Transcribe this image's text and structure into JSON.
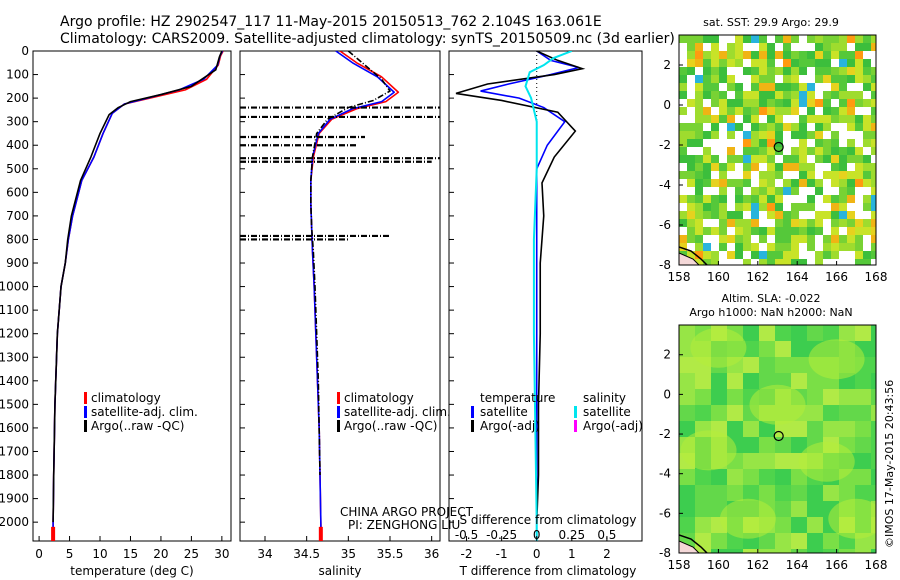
{
  "header": {
    "title_line1": "Argo profile: HZ 2902547_117 11-May-2015 20150513_762 2.104S 163.061E",
    "title_line2": "Climatology: CARS2009. Satellite-adjusted climatology: synTS_20150509.nc (3d earlier)"
  },
  "project": {
    "line1": "CHINA ARGO PROJECT",
    "line2": "PI: ZENGHONG LIU"
  },
  "footer": {
    "vertical_stamp": "©IMOS 17-May-2015 20:43:56"
  },
  "colors": {
    "climatology": "#ff0000",
    "satellite": "#0000ff",
    "argo": "#000000",
    "salinity_satellite": "#00e5ee",
    "salinity_argo": "#ff00ff"
  },
  "chart_data": [
    {
      "id": "temperature",
      "type": "line",
      "xlabel": "temperature (deg C)",
      "xlim": [
        -1,
        31.5
      ],
      "xticks": [
        "0",
        "5",
        "10",
        "15",
        "20",
        "25",
        "30"
      ],
      "xtick_values": [
        0,
        5,
        10,
        15,
        20,
        25,
        30
      ],
      "ylim": [
        2080,
        0
      ],
      "yticks": [
        "0",
        "100",
        "200",
        "300",
        "400",
        "500",
        "600",
        "700",
        "800",
        "900",
        "1000",
        "1100",
        "1200",
        "1300",
        "1400",
        "1500",
        "1600",
        "1700",
        "1800",
        "1900",
        "2000"
      ],
      "ytick_values": [
        0,
        100,
        200,
        300,
        400,
        500,
        600,
        700,
        800,
        900,
        1000,
        1100,
        1200,
        1300,
        1400,
        1500,
        1600,
        1700,
        1800,
        1900,
        2000
      ],
      "legend": [
        "climatology",
        "satellite-adj. clim.",
        "Argo(..raw -QC)"
      ],
      "series": [
        {
          "name": "climatology",
          "color": "#ff0000",
          "x": [
            30.2,
            29.8,
            29.4,
            27.5,
            24,
            19,
            14,
            12,
            10.5,
            9,
            7,
            6,
            5.5,
            4.8,
            4.3,
            3.6,
            3,
            2.6,
            2.4,
            2.3,
            2.3
          ],
          "y": [
            0,
            20,
            60,
            120,
            165,
            195,
            225,
            265,
            350,
            450,
            550,
            650,
            700,
            800,
            900,
            1000,
            1200,
            1500,
            1800,
            2000,
            2080
          ]
        },
        {
          "name": "satellite-adj. clim.",
          "color": "#0000ff",
          "x": [
            30.1,
            29.7,
            29.3,
            27,
            23,
            18.5,
            14,
            12,
            10.5,
            9,
            7,
            6,
            5.5,
            4.8,
            4.3,
            3.6,
            3,
            2.6,
            2.4,
            2.3,
            2.3
          ],
          "y": [
            0,
            20,
            60,
            120,
            165,
            195,
            225,
            265,
            350,
            450,
            550,
            650,
            700,
            800,
            900,
            1000,
            1200,
            1500,
            1800,
            2000,
            2080
          ]
        },
        {
          "name": "Argo(..raw -QC)",
          "color": "#000000",
          "x": [
            30,
            29.6,
            29,
            25,
            20,
            15,
            13,
            11.5,
            10,
            8.5,
            6.8,
            5.8,
            5.3,
            4.7,
            4.3,
            3.6,
            3,
            2.6,
            2.4,
            2.3
          ],
          "y": [
            0,
            25,
            80,
            150,
            185,
            215,
            240,
            270,
            350,
            450,
            550,
            650,
            700,
            800,
            900,
            1000,
            1200,
            1500,
            1800,
            2000
          ]
        }
      ]
    },
    {
      "id": "salinity",
      "type": "line",
      "xlabel": "salinity",
      "xlim": [
        33.7,
        36.1
      ],
      "xticks": [
        "34",
        "34.5",
        "35",
        "35.5",
        "36"
      ],
      "xtick_values": [
        34,
        34.5,
        35,
        35.5,
        36
      ],
      "ylim": [
        2080,
        0
      ],
      "legend": [
        "climatology",
        "satellite-adj. clim.",
        "Argo(..raw -QC)"
      ],
      "series": [
        {
          "name": "climatology",
          "color": "#ff0000",
          "x": [
            34.9,
            35.1,
            35.4,
            35.6,
            35.45,
            35.1,
            34.8,
            34.65,
            34.58,
            34.55,
            34.55,
            34.56,
            34.57,
            34.59,
            34.61,
            34.63,
            34.65,
            34.66,
            34.67,
            34.68
          ],
          "y": [
            0,
            50,
            110,
            175,
            215,
            245,
            290,
            350,
            450,
            550,
            650,
            750,
            850,
            1000,
            1200,
            1400,
            1600,
            1800,
            2000,
            2080
          ]
        },
        {
          "name": "satellite-adj. clim.",
          "color": "#0000ff",
          "x": [
            34.85,
            35.05,
            35.35,
            35.55,
            35.4,
            35.05,
            34.78,
            34.64,
            34.57,
            34.55,
            34.55,
            34.56,
            34.57,
            34.59,
            34.61,
            34.63,
            34.65,
            34.66,
            34.67,
            34.67
          ],
          "y": [
            0,
            50,
            110,
            175,
            215,
            245,
            290,
            350,
            450,
            550,
            650,
            750,
            850,
            1000,
            1200,
            1400,
            1600,
            1800,
            2000,
            2080
          ]
        },
        {
          "name": "Argo(..raw -QC)",
          "color": "#000000",
          "style": "dashdot",
          "x": [
            35.0,
            35.2,
            35.4,
            35.5,
            35.3,
            35.0,
            34.75,
            34.62,
            34.57,
            34.55,
            34.55,
            34.56,
            34.58,
            34.6,
            34.62,
            34.64,
            34.65,
            34.66
          ],
          "y": [
            0,
            60,
            120,
            170,
            210,
            240,
            290,
            350,
            450,
            550,
            650,
            750,
            850,
            1000,
            1200,
            1400,
            1600,
            1800
          ]
        },
        {
          "name": "Argo bad samples",
          "color": "#000000",
          "style": "dashdot",
          "segments": [
            [
              33.7,
              240,
              36.1,
              240
            ],
            [
              33.7,
              280,
              36.1,
              280
            ],
            [
              33.7,
              365,
              35.2,
              365
            ],
            [
              33.7,
              400,
              35.1,
              400
            ],
            [
              33.7,
              455,
              36.1,
              455
            ],
            [
              33.7,
              470,
              36.0,
              470
            ],
            [
              33.7,
              785,
              35.5,
              785
            ],
            [
              33.7,
              800,
              35.0,
              800
            ]
          ]
        }
      ]
    },
    {
      "id": "difference",
      "type": "line",
      "xlabel_top": "S difference from climatology",
      "xlabel_bottom": "T difference from climatology",
      "xlim_T": [
        -2.5,
        3
      ],
      "xticks_T": [
        "-2",
        "-1",
        "0",
        "1",
        "2"
      ],
      "xtick_values_T": [
        -2,
        -1,
        0,
        1,
        2
      ],
      "xticks_S": [
        "-0.5",
        "-0.25",
        "0",
        "0.25",
        "0.5"
      ],
      "xtick_values_S": [
        -0.5,
        -0.25,
        0,
        0.25,
        0.5
      ],
      "ylim": [
        2080,
        0
      ],
      "legend_left_title": "temperature",
      "legend_right_title": "salinity",
      "legend": [
        "satellite",
        "Argo(-adj)",
        "satellite",
        "Argo(-adj)"
      ],
      "series": [
        {
          "name": "T satellite",
          "color": "#0000ff",
          "x": [
            0,
            0.4,
            1.2,
            0.4,
            -0.8,
            -1.6,
            -0.5,
            0.2,
            0.8,
            0.3,
            0,
            0,
            0,
            0,
            0,
            0
          ],
          "y": [
            0,
            40,
            70,
            100,
            140,
            170,
            200,
            240,
            300,
            400,
            500,
            700,
            1000,
            1400,
            1800,
            2080
          ]
        },
        {
          "name": "T Argo(-adj)",
          "color": "#000000",
          "x": [
            0,
            0.6,
            1.3,
            0.5,
            -1.4,
            -2.3,
            -1.0,
            0.6,
            1.1,
            0.5,
            0.15,
            0.2,
            0.1,
            0.1,
            0.05,
            0.05,
            0
          ],
          "y": [
            0,
            40,
            75,
            100,
            140,
            180,
            210,
            260,
            340,
            450,
            560,
            700,
            900,
            1200,
            1500,
            1800,
            2000
          ]
        },
        {
          "name": "S satellite",
          "color": "#00e5ee",
          "x": [
            0.25,
            0.12,
            0.05,
            -0.05,
            -0.08,
            -0.04,
            0,
            0,
            -0.02,
            -0.02,
            -0.01,
            0,
            0
          ],
          "y": [
            0,
            30,
            60,
            90,
            150,
            200,
            300,
            500,
            800,
            1200,
            1600,
            2000,
            2080
          ]
        }
      ]
    },
    {
      "id": "sst_map",
      "type": "heatmap",
      "title": "sat. SST: 29.9 Argo: 29.9",
      "xticks": [
        "158",
        "160",
        "162",
        "164",
        "166",
        "168"
      ],
      "yticks": [
        "2",
        "0",
        "-2",
        "-4",
        "-6",
        "-8"
      ],
      "xlim": [
        158,
        168
      ],
      "ylim": [
        -8,
        3.5
      ],
      "marker_lon": 163.06,
      "marker_lat": -2.1
    },
    {
      "id": "sla_map",
      "type": "heatmap",
      "title_line1": "Altim. SLA: -0.022",
      "title_line2": "Argo h1000: NaN h2000: NaN",
      "xticks": [
        "158",
        "160",
        "162",
        "164",
        "166",
        "168"
      ],
      "yticks": [
        "2",
        "0",
        "-2",
        "-4",
        "-6",
        "-8"
      ],
      "xlim": [
        158,
        168
      ],
      "ylim": [
        -8,
        3.5
      ],
      "marker_lon": 163.06,
      "marker_lat": -2.1
    }
  ]
}
